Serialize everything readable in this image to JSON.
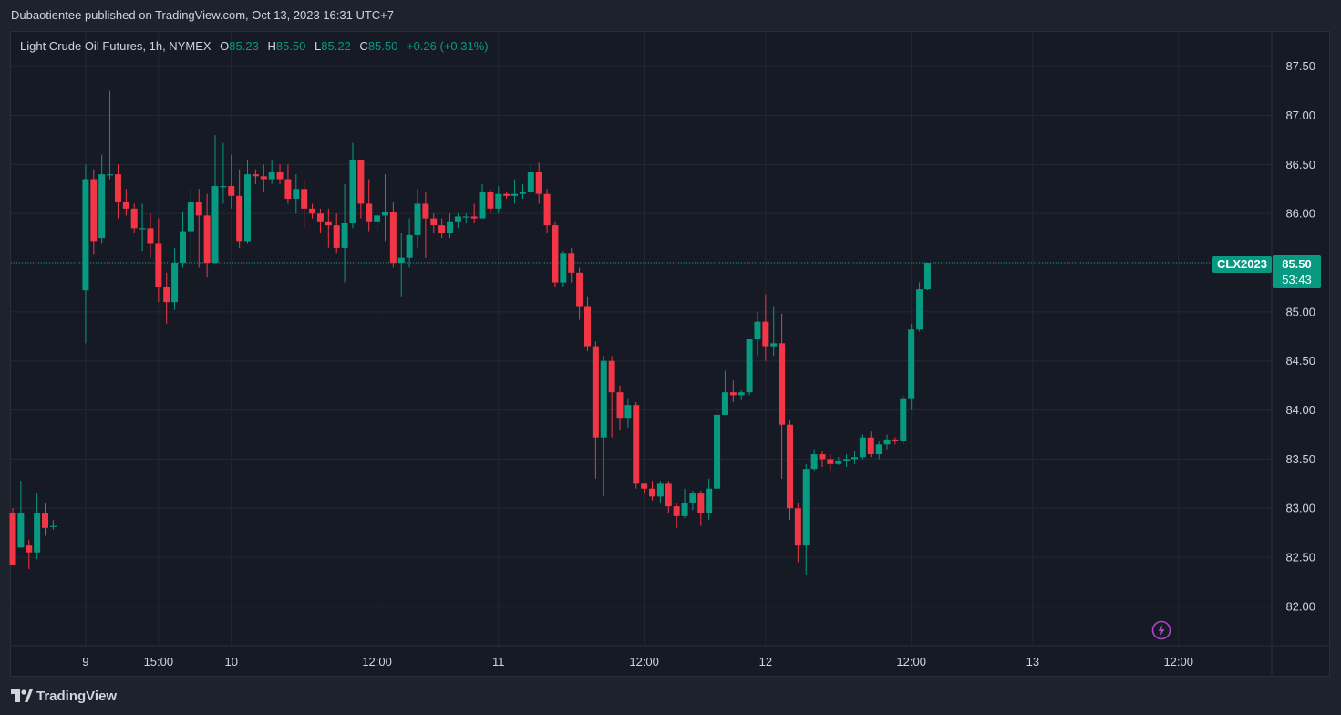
{
  "header": {
    "published_text": "Dubaotientee published on TradingView.com, Oct 13, 2023 16:31 UTC+7"
  },
  "legend": {
    "symbol": "Light Crude Oil Futures, 1h, NYMEX",
    "open_label": "O",
    "open": "85.23",
    "high_label": "H",
    "high": "85.50",
    "low_label": "L",
    "low": "85.22",
    "close_label": "C",
    "close": "85.50",
    "change": "+0.26 (+0.31%)"
  },
  "price_tag": {
    "price": "85.50",
    "countdown": "53:43"
  },
  "symbol_tag": "CLX2023",
  "footer": {
    "brand": "TradingView"
  },
  "colors": {
    "up": "#089981",
    "down": "#f23645",
    "background": "#161a25",
    "grid": "#242833",
    "text": "#d1d4dc"
  },
  "chart_data": {
    "type": "candlestick",
    "y_axis": {
      "ticks": [
        "87.50",
        "87.00",
        "86.50",
        "86.00",
        "85.50",
        "85.00",
        "84.50",
        "84.00",
        "83.50",
        "83.00",
        "82.50",
        "82.00"
      ],
      "ylim": [
        81.6,
        87.85
      ]
    },
    "x_axis": {
      "ticks": [
        {
          "label": "9",
          "index": 9
        },
        {
          "label": "15:00",
          "index": 18
        },
        {
          "label": "10",
          "index": 27
        },
        {
          "label": "12:00",
          "index": 45
        },
        {
          "label": "11",
          "index": 60
        },
        {
          "label": "12:00",
          "index": 78
        },
        {
          "label": "12",
          "index": 93
        },
        {
          "label": "12:00",
          "index": 111
        },
        {
          "label": "13",
          "index": 126
        },
        {
          "label": "12:00",
          "index": 144
        }
      ]
    },
    "last_price": 85.5,
    "candles": [
      [
        82.95,
        82.42,
        83.0,
        82.42
      ],
      [
        82.6,
        82.95,
        83.28,
        82.6
      ],
      [
        82.62,
        82.55,
        82.68,
        82.38
      ],
      [
        82.55,
        82.95,
        83.15,
        82.48
      ],
      [
        82.95,
        82.8,
        83.05,
        82.72
      ],
      [
        82.82,
        82.82,
        82.88,
        82.78
      ],
      [
        85.22,
        86.35,
        86.5,
        84.68
      ],
      [
        86.35,
        85.72,
        86.45,
        85.58
      ],
      [
        85.75,
        86.4,
        86.6,
        85.7
      ],
      [
        86.4,
        86.4,
        87.25,
        86.35
      ],
      [
        86.4,
        86.12,
        86.5,
        85.95
      ],
      [
        86.12,
        86.05,
        86.25,
        85.98
      ],
      [
        86.05,
        85.85,
        86.1,
        85.8
      ],
      [
        85.85,
        85.85,
        86.1,
        85.62
      ],
      [
        85.85,
        85.7,
        86.0,
        85.55
      ],
      [
        85.7,
        85.25,
        85.95,
        85.1
      ],
      [
        85.25,
        85.1,
        85.4,
        84.88
      ],
      [
        85.1,
        85.5,
        85.65,
        85.02
      ],
      [
        85.5,
        85.82,
        86.02,
        85.45
      ],
      [
        85.82,
        86.12,
        86.25,
        85.5
      ],
      [
        86.12,
        85.98,
        86.25,
        85.45
      ],
      [
        85.98,
        85.5,
        86.2,
        85.35
      ],
      [
        85.5,
        86.28,
        86.8,
        85.48
      ],
      [
        86.28,
        86.28,
        86.72,
        86.1
      ],
      [
        86.28,
        86.18,
        86.6,
        86.05
      ],
      [
        86.18,
        85.72,
        86.45,
        85.65
      ],
      [
        85.72,
        86.4,
        86.55,
        85.7
      ],
      [
        86.4,
        86.38,
        86.45,
        86.3
      ],
      [
        86.38,
        86.35,
        86.5,
        86.22
      ],
      [
        86.35,
        86.42,
        86.55,
        86.3
      ],
      [
        86.42,
        86.35,
        86.5,
        86.3
      ],
      [
        86.35,
        86.15,
        86.5,
        86.1
      ],
      [
        86.15,
        86.25,
        86.4,
        86.0
      ],
      [
        86.25,
        86.05,
        86.35,
        85.85
      ],
      [
        86.05,
        86.0,
        86.1,
        85.95
      ],
      [
        86.0,
        85.92,
        86.05,
        85.8
      ],
      [
        85.92,
        85.88,
        86.05,
        85.65
      ],
      [
        85.88,
        85.65,
        86.0,
        85.6
      ],
      [
        85.65,
        85.9,
        86.3,
        85.3
      ],
      [
        85.9,
        86.55,
        86.72,
        85.85
      ],
      [
        86.55,
        86.1,
        86.55,
        85.95
      ],
      [
        86.1,
        85.92,
        86.35,
        85.82
      ],
      [
        85.92,
        85.98,
        86.02,
        85.8
      ],
      [
        85.98,
        86.02,
        86.4,
        85.72
      ],
      [
        86.02,
        85.5,
        86.12,
        85.45
      ],
      [
        85.5,
        85.55,
        85.8,
        85.15
      ],
      [
        85.55,
        85.78,
        85.95,
        85.45
      ],
      [
        85.78,
        86.1,
        86.25,
        85.65
      ],
      [
        86.1,
        85.95,
        86.22,
        85.55
      ],
      [
        85.95,
        85.88,
        86.0,
        85.8
      ],
      [
        85.88,
        85.8,
        85.95,
        85.75
      ],
      [
        85.8,
        85.92,
        86.0,
        85.75
      ],
      [
        85.92,
        85.97,
        86.0,
        85.85
      ],
      [
        85.97,
        85.97,
        86.0,
        85.9
      ],
      [
        85.97,
        85.95,
        86.1,
        85.9
      ],
      [
        85.95,
        86.22,
        86.3,
        85.95
      ],
      [
        86.22,
        86.05,
        86.25,
        86.0
      ],
      [
        86.05,
        86.2,
        86.28,
        86.0
      ],
      [
        86.2,
        86.18,
        86.22,
        86.15
      ],
      [
        86.18,
        86.2,
        86.35,
        86.1
      ],
      [
        86.2,
        86.22,
        86.3,
        86.15
      ],
      [
        86.22,
        86.42,
        86.5,
        86.2
      ],
      [
        86.42,
        86.2,
        86.52,
        86.1
      ],
      [
        86.2,
        85.88,
        86.25,
        85.8
      ],
      [
        85.88,
        85.3,
        85.92,
        85.25
      ],
      [
        85.3,
        85.6,
        85.62,
        85.25
      ],
      [
        85.6,
        85.4,
        85.65,
        85.3
      ],
      [
        85.4,
        85.05,
        85.45,
        84.92
      ],
      [
        85.05,
        84.65,
        85.15,
        84.6
      ],
      [
        84.65,
        83.72,
        84.7,
        83.3
      ],
      [
        83.72,
        84.5,
        84.55,
        83.12
      ],
      [
        84.5,
        84.18,
        84.55,
        83.72
      ],
      [
        84.18,
        83.92,
        84.25,
        83.8
      ],
      [
        83.92,
        84.05,
        84.12,
        83.82
      ],
      [
        84.05,
        83.25,
        84.08,
        83.2
      ],
      [
        83.25,
        83.2,
        83.25,
        83.15
      ],
      [
        83.2,
        83.12,
        83.28,
        83.08
      ],
      [
        83.12,
        83.25,
        83.28,
        83.05
      ],
      [
        83.25,
        83.02,
        83.28,
        82.95
      ],
      [
        83.02,
        82.92,
        83.05,
        82.8
      ],
      [
        82.92,
        83.05,
        83.2,
        82.9
      ],
      [
        83.05,
        83.15,
        83.18,
        82.98
      ],
      [
        83.15,
        82.95,
        83.18,
        82.82
      ],
      [
        82.95,
        83.2,
        83.3,
        82.88
      ],
      [
        83.2,
        83.95,
        84.0,
        83.2
      ],
      [
        83.95,
        84.18,
        84.4,
        83.95
      ],
      [
        84.18,
        84.15,
        84.3,
        84.08
      ],
      [
        84.15,
        84.18,
        84.2,
        84.1
      ],
      [
        84.18,
        84.72,
        84.72,
        84.15
      ],
      [
        84.72,
        84.9,
        85.0,
        84.55
      ],
      [
        84.9,
        84.65,
        85.18,
        84.5
      ],
      [
        84.65,
        84.68,
        85.05,
        84.55
      ],
      [
        84.68,
        83.85,
        84.98,
        83.3
      ],
      [
        83.85,
        83.0,
        83.9,
        82.88
      ],
      [
        83.0,
        82.62,
        83.05,
        82.45
      ],
      [
        82.62,
        83.4,
        83.45,
        82.32
      ],
      [
        83.4,
        83.55,
        83.6,
        83.38
      ],
      [
        83.55,
        83.5,
        83.58,
        83.42
      ],
      [
        83.5,
        83.45,
        83.55,
        83.38
      ],
      [
        83.45,
        83.48,
        83.52,
        83.44
      ],
      [
        83.48,
        83.5,
        83.55,
        83.42
      ],
      [
        83.5,
        83.52,
        83.58,
        83.45
      ],
      [
        83.52,
        83.72,
        83.75,
        83.5
      ],
      [
        83.72,
        83.55,
        83.78,
        83.52
      ],
      [
        83.55,
        83.65,
        83.68,
        83.5
      ],
      [
        83.65,
        83.7,
        83.75,
        83.6
      ],
      [
        83.7,
        83.68,
        83.72,
        83.65
      ],
      [
        83.68,
        84.12,
        84.15,
        83.65
      ],
      [
        84.12,
        84.82,
        84.88,
        84.0
      ],
      [
        84.82,
        85.23,
        85.3,
        84.8
      ],
      [
        85.23,
        85.5,
        85.5,
        85.22
      ]
    ]
  }
}
